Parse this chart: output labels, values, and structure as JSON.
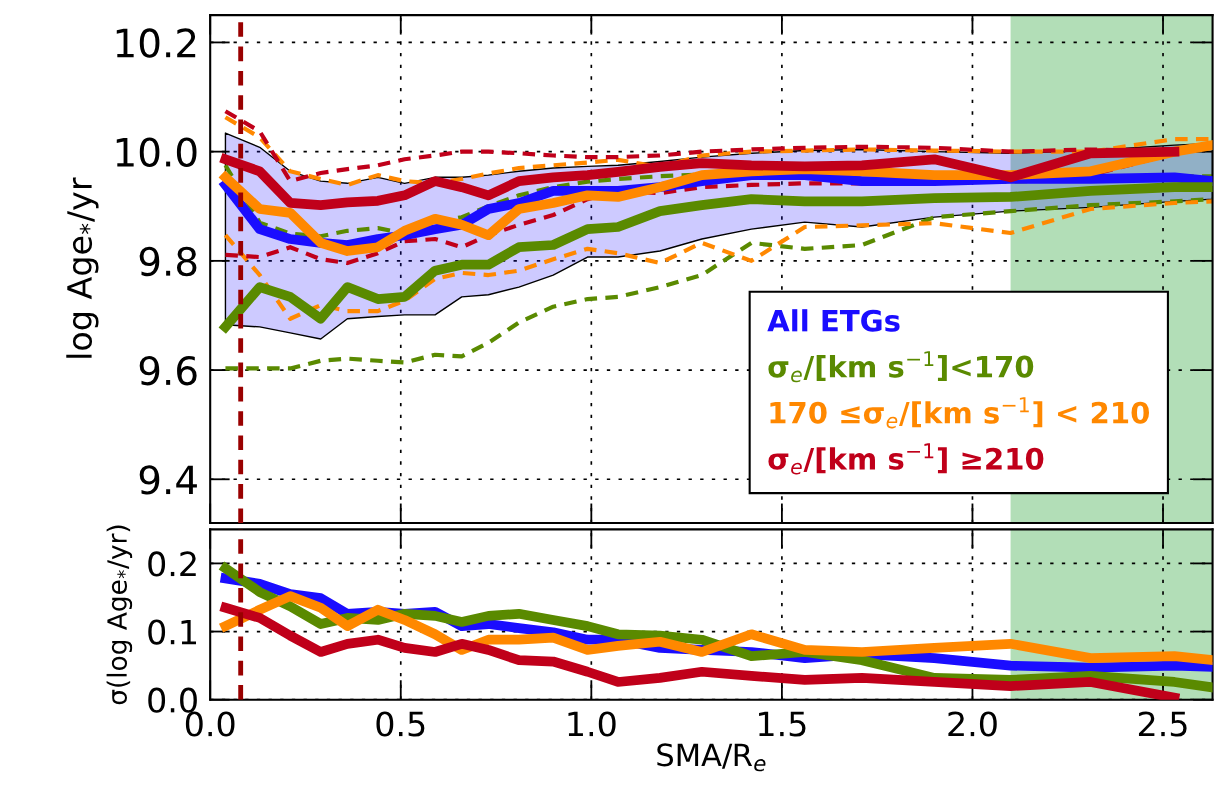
{
  "chart_data": [
    {
      "type": "line",
      "ylabel": "log Age$_{*}$/yr",
      "grid": true,
      "legend": "bottom right",
      "tick_labels": "y",
      "x": [
        0.04,
        0.13,
        0.21,
        0.29,
        0.36,
        0.44,
        0.51,
        0.59,
        0.66,
        0.73,
        0.81,
        0.9,
        0.99,
        1.07,
        1.18,
        1.29,
        1.42,
        1.56,
        1.71,
        1.9,
        2.1,
        2.31,
        2.53,
        2.63
      ],
      "xlim": [
        0,
        2.63
      ],
      "xticks": [
        0,
        0.5,
        1,
        1.5,
        2,
        2.5
      ],
      "ylim": [
        9.32,
        10.25
      ],
      "yticks": [
        9.4,
        9.6,
        9.8,
        {
          "value": 10.0,
          "label": "10.0"
        },
        10.2
      ],
      "series": [
        {
          "name": "All ETGs",
          "color": "#1a0dff",
          "line_style": "solid",
          "values": [
            9.939,
            9.858,
            9.84,
            9.833,
            9.829,
            9.84,
            9.847,
            9.858,
            9.866,
            9.895,
            9.906,
            9.928,
            9.928,
            9.928,
            9.935,
            9.946,
            9.957,
            9.957,
            9.946,
            9.946,
            9.95,
            9.95,
            9.953,
            9.946
          ],
          "lower": [
            9.683,
            9.679,
            9.668,
            9.657,
            9.694,
            9.698,
            9.701,
            9.701,
            9.734,
            9.738,
            9.752,
            9.774,
            9.807,
            9.807,
            9.818,
            9.84,
            9.858,
            9.871,
            9.862,
            9.88,
            9.891,
            9.898,
            9.909,
            9.913
          ],
          "upper": [
            10.034,
            10.008,
            9.964,
            9.946,
            9.942,
            9.953,
            9.942,
            9.953,
            9.953,
            9.957,
            9.964,
            9.97,
            9.973,
            9.975,
            9.982,
            9.99,
            9.997,
            10.002,
            10.004,
            10.0,
            9.997,
            10.002,
            10.012,
            10.015
          ]
        },
        {
          "color": "#5a8a00",
          "line_style": "dashed",
          "values": [
            9.975,
            9.87,
            9.85,
            9.845,
            9.855,
            9.86,
            9.85,
            9.87,
            9.88,
            9.9,
            9.92,
            9.935,
            9.945,
            9.95,
            9.955,
            9.958,
            9.96,
            9.955,
            9.948,
            9.945,
            9.945,
            9.95,
            9.955,
            9.955
          ]
        },
        {
          "color": "#5a8a00",
          "line_style": "dashed",
          "values": [
            9.603,
            9.603,
            9.603,
            9.617,
            9.621,
            9.617,
            9.614,
            9.628,
            9.625,
            9.65,
            9.687,
            9.716,
            9.73,
            9.734,
            9.752,
            9.774,
            9.833,
            9.822,
            9.829,
            9.88,
            9.891,
            9.902,
            9.909,
            9.913
          ]
        },
        {
          "color": "#ff8800",
          "line_style": "dashed",
          "values": [
            10.063,
            10.026,
            9.964,
            9.95,
            9.939,
            9.957,
            9.946,
            9.942,
            9.95,
            9.96,
            9.97,
            9.975,
            9.98,
            9.985,
            9.972,
            9.993,
            10.0,
            10.002,
            10.004,
            10.002,
            10.0,
            10.0,
            10.023,
            10.023
          ]
        },
        {
          "color": "#ff8800",
          "line_style": "dashed",
          "values": [
            9.847,
            9.774,
            9.694,
            9.719,
            9.708,
            9.708,
            9.727,
            9.767,
            9.778,
            9.774,
            9.782,
            9.803,
            9.822,
            9.814,
            9.796,
            9.833,
            9.8,
            9.862,
            9.865,
            9.869,
            9.851,
            9.895,
            9.906,
            9.909
          ]
        },
        {
          "color": "#c0001a",
          "line_style": "dashed",
          "values": [
            10.074,
            10.037,
            9.946,
            9.961,
            9.968,
            9.975,
            9.986,
            9.993,
            10.0,
            10.0,
            9.997,
            9.993,
            9.99,
            9.99,
            9.993,
            10.0,
            10.004,
            10.007,
            10.009,
            10.007,
            10.0,
            10.004,
            10.0,
            null
          ]
        },
        {
          "color": "#c0001a",
          "line_style": "dashed",
          "values": [
            9.811,
            9.807,
            9.825,
            9.803,
            9.796,
            9.814,
            9.836,
            9.84,
            9.825,
            9.847,
            9.866,
            9.884,
            9.913,
            9.928,
            9.924,
            9.935,
            9.939,
            9.942,
            9.942,
            9.946,
            9.95,
            9.957,
            9.997,
            null
          ]
        },
        {
          "name": "σ$_{e}$/[km s$^{−1}$]<170",
          "color": "#5a8a00",
          "line_style": "solid",
          "values": [
            9.679,
            9.752,
            9.734,
            9.694,
            9.752,
            9.73,
            9.734,
            9.782,
            9.793,
            9.793,
            9.825,
            9.829,
            9.858,
            9.862,
            9.891,
            9.902,
            9.913,
            9.909,
            9.909,
            9.915,
            9.917,
            9.928,
            9.935,
            9.935
          ]
        },
        {
          "name": "170 ≤σ$_{e}$/[km s$^{−1}$] < 210",
          "color": "#ff8800",
          "line_style": "solid",
          "values": [
            9.953,
            9.895,
            9.888,
            9.833,
            9.818,
            9.825,
            9.855,
            9.877,
            9.866,
            9.847,
            9.895,
            9.906,
            9.92,
            9.917,
            9.935,
            9.957,
            9.964,
            9.968,
            9.964,
            9.957,
            9.957,
            9.964,
            10.0,
            10.012
          ]
        },
        {
          "name": "σ$_{e}$/[km s$^{−1}$] ≥210",
          "color": "#c0001a",
          "line_style": "solid",
          "values": [
            9.986,
            9.964,
            9.906,
            9.902,
            9.907,
            9.91,
            9.92,
            9.946,
            9.935,
            9.92,
            9.946,
            9.953,
            9.957,
            9.963,
            9.972,
            9.979,
            9.975,
            9.973,
            9.975,
            9.986,
            9.953,
            9.997,
            10.0,
            null
          ]
        }
      ],
      "ref_lines": [
        {
          "axis": "x",
          "value": 0.08,
          "color": "#990000",
          "line_style": "dashed"
        }
      ],
      "bands": [
        {
          "axis": "x",
          "from": 2.1,
          "to": 2.63,
          "color": "#55b560"
        }
      ]
    },
    {
      "type": "line",
      "ylabel": "σ(log Age$_{*}$/yr)",
      "xlabel": "SMA/R$_{e}$",
      "grid": true,
      "x": [
        0.04,
        0.13,
        0.21,
        0.29,
        0.36,
        0.44,
        0.51,
        0.59,
        0.66,
        0.73,
        0.81,
        0.9,
        0.99,
        1.07,
        1.18,
        1.29,
        1.42,
        1.56,
        1.71,
        1.9,
        2.1,
        2.31,
        2.53,
        2.63
      ],
      "xlim": [
        0,
        2.63
      ],
      "xticks": [
        {
          "value": 0,
          "label": "0.0"
        },
        0.5,
        {
          "value": 1,
          "label": "1.0"
        },
        1.5,
        {
          "value": 2,
          "label": "2.0"
        },
        2.5
      ],
      "ylim": [
        0,
        0.25
      ],
      "yticks": [
        {
          "value": 0,
          "label": "0.0"
        },
        0.1,
        0.2
      ],
      "series": [
        {
          "color": "#1a0dff",
          "line_style": "solid",
          "values": [
            0.178,
            0.17,
            0.155,
            0.149,
            0.126,
            0.129,
            0.126,
            0.129,
            0.108,
            0.111,
            0.105,
            0.099,
            0.088,
            0.088,
            0.076,
            0.073,
            0.07,
            0.061,
            0.067,
            0.061,
            0.05,
            0.047,
            0.05,
            0.048
          ]
        },
        {
          "color": "#5a8a00",
          "line_style": "solid",
          "values": [
            0.193,
            0.158,
            0.137,
            0.111,
            0.12,
            0.117,
            0.126,
            0.123,
            0.114,
            0.123,
            0.126,
            0.117,
            0.108,
            0.096,
            0.094,
            0.088,
            0.064,
            0.07,
            0.058,
            0.032,
            0.029,
            0.035,
            0.026,
            0.018
          ]
        },
        {
          "color": "#ff8800",
          "line_style": "solid",
          "values": [
            0.108,
            0.132,
            0.152,
            0.135,
            0.108,
            0.132,
            0.117,
            0.096,
            0.073,
            0.088,
            0.088,
            0.091,
            0.073,
            0.079,
            0.085,
            0.07,
            0.096,
            0.073,
            0.07,
            0.076,
            0.082,
            0.061,
            0.064,
            0.058
          ]
        },
        {
          "color": "#c0001a",
          "line_style": "solid",
          "values": [
            0.135,
            0.12,
            0.094,
            0.07,
            0.082,
            0.088,
            0.076,
            0.07,
            0.082,
            0.073,
            0.058,
            0.056,
            0.041,
            0.026,
            0.032,
            0.041,
            0.035,
            0.029,
            0.032,
            0.026,
            0.02,
            0.026,
            0.003,
            null
          ]
        }
      ],
      "ref_lines": [
        {
          "axis": "x",
          "value": 0.08,
          "color": "#990000",
          "line_style": "dashed"
        }
      ],
      "bands": [
        {
          "axis": "x",
          "from": 2.1,
          "to": 2.63,
          "color": "#55b560"
        }
      ]
    }
  ]
}
